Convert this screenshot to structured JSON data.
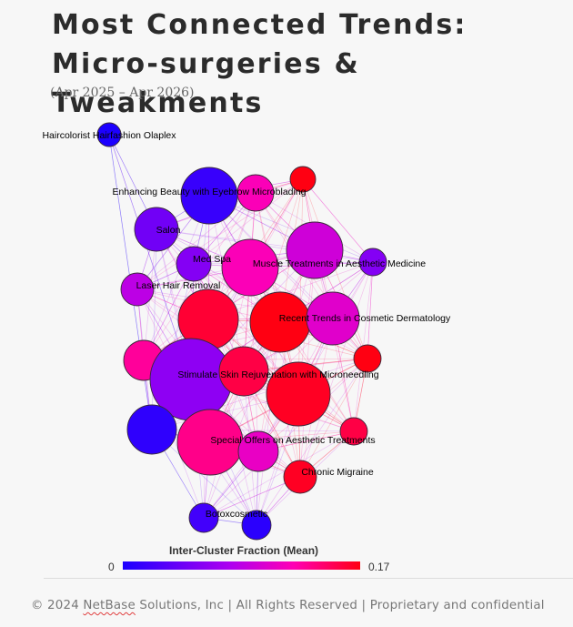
{
  "header": {
    "title_line1": "Most Connected Trends:",
    "title_line2": "Micro-surgeries & Tweakments",
    "subtitle": "(Apr 2025 – Apr 2026)"
  },
  "legend": {
    "title": "Inter-Cluster Fraction (Mean)",
    "min_label": "0",
    "max_label": "0.17",
    "min": 0,
    "max": 0.17,
    "colors": [
      "#1c00ff",
      "#ad00f0",
      "#ff00b4",
      "#ff0012"
    ]
  },
  "footer": {
    "prefix": "© 2024 ",
    "company": "NetBase",
    "suffix": " Solutions, Inc | All Rights Reserved | Proprietary and confidential"
  },
  "nodes": [
    {
      "id": "haircolorist",
      "label": "Haircolorist Hairfashion Olaplex",
      "value": 0.0
    },
    {
      "id": "eyebrow-big",
      "label": "Enhancing Beauty with Eyebrow Microblading",
      "value": 0.015
    },
    {
      "id": "eyebrow-pink",
      "label": "",
      "value": 0.12
    },
    {
      "id": "red-top",
      "label": "",
      "value": 0.17
    },
    {
      "id": "salon",
      "label": "Salon",
      "value": 0.045
    },
    {
      "id": "medspa",
      "label": "Med Spa",
      "value": 0.055
    },
    {
      "id": "muscle",
      "label": "Muscle Treatments in Aesthetic Medicine",
      "value": 0.12
    },
    {
      "id": "magenta-big",
      "label": "",
      "value": 0.095
    },
    {
      "id": "aesthetic-med",
      "label": "",
      "value": 0.055
    },
    {
      "id": "laser",
      "label": "Laser Hair Removal",
      "value": 0.085
    },
    {
      "id": "crimson-left",
      "label": "",
      "value": 0.16
    },
    {
      "id": "recent-trends",
      "label": "Recent Trends in Cosmetic Dermatology",
      "value": 0.17
    },
    {
      "id": "magenta-right",
      "label": "",
      "value": 0.105
    },
    {
      "id": "pink-left",
      "label": "",
      "value": 0.13
    },
    {
      "id": "red-small-right",
      "label": "",
      "value": 0.17
    },
    {
      "id": "stimulate",
      "label": "Stimulate Skin Rejuvenation with Microneedling",
      "value": 0.06
    },
    {
      "id": "crimson-mid",
      "label": "",
      "value": 0.155
    },
    {
      "id": "red-big",
      "label": "",
      "value": 0.165
    },
    {
      "id": "blue-left",
      "label": "",
      "value": 0.01
    },
    {
      "id": "special-offers",
      "label": "Special Offers on Aesthetic Treatments",
      "value": 0.135
    },
    {
      "id": "magenta-small",
      "label": "",
      "value": 0.11
    },
    {
      "id": "red-small-2",
      "label": "",
      "value": 0.155
    },
    {
      "id": "chronic",
      "label": "Chronic Migraine",
      "value": 0.165
    },
    {
      "id": "boxcosmetic",
      "label": "Botoxcosmetic",
      "value": 0.02
    },
    {
      "id": "blue-bottom",
      "label": "",
      "value": 0.008
    }
  ]
}
